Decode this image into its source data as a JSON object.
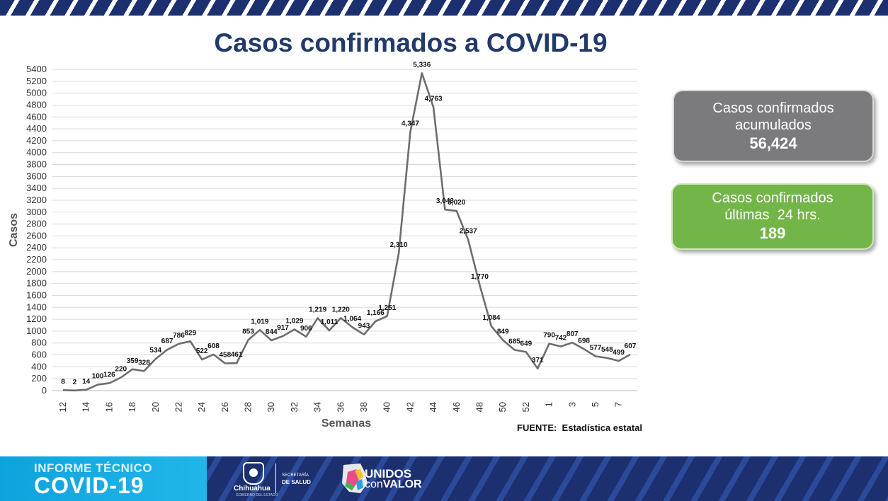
{
  "title": "Casos confirmados a COVID-19",
  "chart_data": {
    "type": "line",
    "xlabel": "Semanas",
    "ylabel": "Casos",
    "ylim": [
      0,
      5400
    ],
    "ytick_step": 200,
    "grid": true,
    "x_tick_labels": [
      "12",
      "14",
      "16",
      "18",
      "20",
      "22",
      "24",
      "26",
      "28",
      "30",
      "32",
      "34",
      "36",
      "38",
      "40",
      "42",
      "44",
      "46",
      "48",
      "50",
      "52",
      "1",
      "3",
      "5",
      "7"
    ],
    "x": [
      "12",
      "13",
      "14",
      "15",
      "16",
      "17",
      "18",
      "19",
      "20",
      "21",
      "22",
      "23",
      "24",
      "25",
      "26",
      "27",
      "28",
      "29",
      "30",
      "31",
      "32",
      "33",
      "34",
      "35",
      "36",
      "37",
      "38",
      "39",
      "40",
      "41",
      "42",
      "43",
      "44",
      "45",
      "46",
      "47",
      "48",
      "49",
      "50",
      "51",
      "52",
      "53",
      "1",
      "2",
      "3",
      "4",
      "5",
      "6",
      "7",
      "8"
    ],
    "series": [
      {
        "color": "#6d6c70",
        "values": [
          8,
          2,
          14,
          100,
          126,
          220,
          359,
          328,
          534,
          687,
          786,
          829,
          522,
          608,
          458,
          461,
          853,
          1019,
          844,
          917,
          1029,
          906,
          1219,
          1011,
          1220,
          1064,
          943,
          1166,
          1251,
          2310,
          4347,
          5336,
          4763,
          3043,
          3020,
          2537,
          1770,
          1084,
          849,
          685,
          649,
          371,
          790,
          742,
          807,
          698,
          577,
          548,
          499,
          607
        ],
        "data_labels": [
          "8",
          "2",
          "14",
          "100",
          "126",
          "220",
          "359",
          "328",
          "534",
          "687",
          "786",
          "829",
          "522",
          "608",
          "458",
          "461",
          "853",
          "1,019",
          "844",
          "917",
          "1,029",
          "906",
          "1,219",
          "1,011",
          "1,220",
          "1,064",
          "943",
          "1,166",
          "1,251",
          "2,310",
          "4,347",
          "5,336",
          "4,763",
          "3,043",
          "3,020",
          "2,537",
          "1,770",
          "1,084",
          "849",
          "685",
          "649",
          "371",
          "790",
          "742",
          "807",
          "698",
          "577",
          "548",
          "499",
          "607"
        ]
      }
    ]
  },
  "boxes": {
    "accumulated": {
      "line1": "Casos confirmados",
      "line2": "acumulados",
      "value": "56,424"
    },
    "last24": {
      "line1": "Casos confirmados",
      "line2": "últimas  24 hrs.",
      "value": "189"
    }
  },
  "source": "FUENTE:  Estadística estatal",
  "footer": {
    "line1": "INFORME TÉCNICO",
    "line2": "COVID-19",
    "state": "Chihuahua",
    "state_sub": "GOBIERNO DEL ESTADO",
    "dept1": "SECRETARÍA",
    "dept2": "DE SALUD",
    "slogan1": "UNIDOS",
    "slogan2_a": "con",
    "slogan2_b": "VALOR"
  },
  "colors": {
    "title": "#223a6b",
    "line": "#6d6c70",
    "box_gray": "#7b7a7d",
    "box_green": "#73b548",
    "banner": "#1c2f6e",
    "footer_accent": "#0fa3dd"
  }
}
